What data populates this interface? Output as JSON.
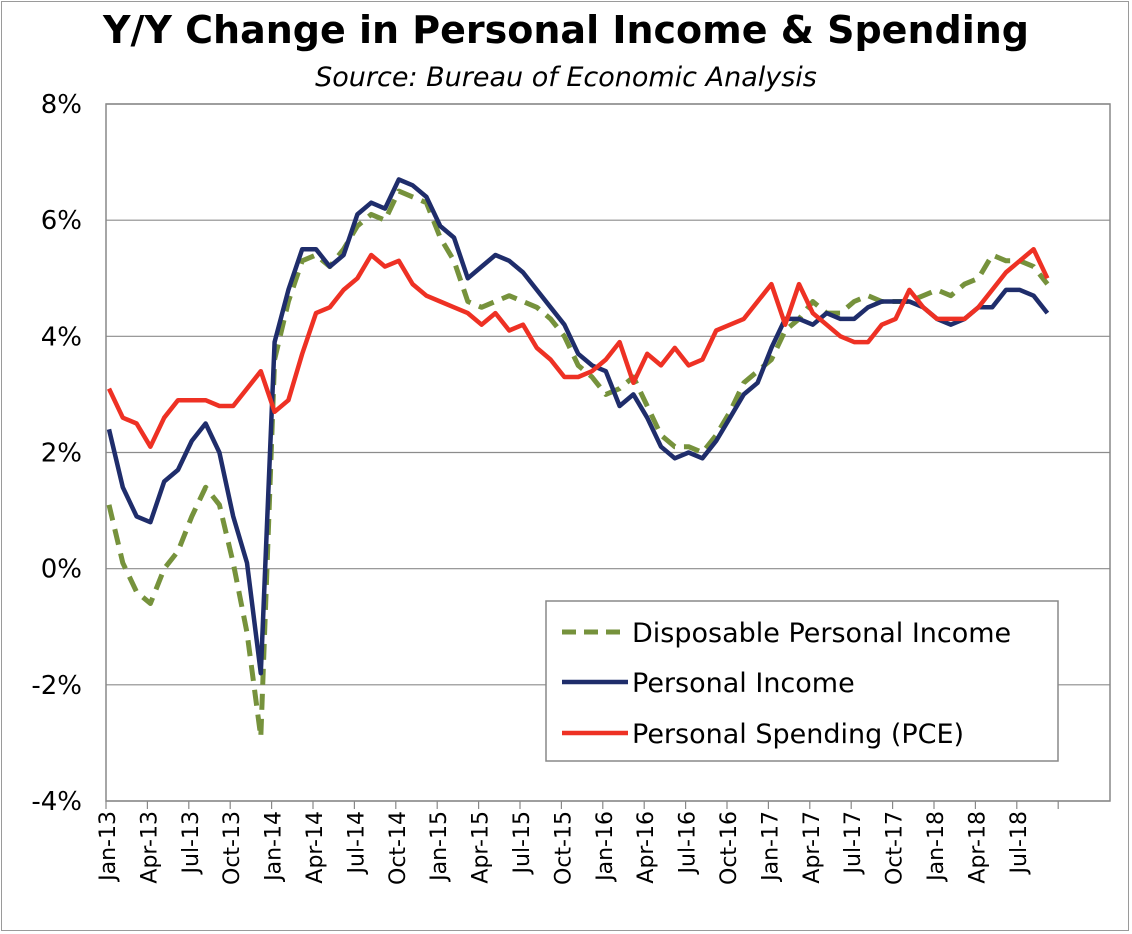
{
  "chart_data": {
    "type": "line",
    "title": "Y/Y Change in Personal Income & Spending",
    "subtitle": "Source: Bureau of Economic Analysis",
    "xlabel": "",
    "ylabel": "",
    "ylim": [
      -4,
      8
    ],
    "y_ticks": [
      "-4%",
      "-2%",
      "0%",
      "2%",
      "4%",
      "6%",
      "8%"
    ],
    "x_tick_labels": [
      "Jan-13",
      "Apr-13",
      "Jul-13",
      "Oct-13",
      "Jan-14",
      "Apr-14",
      "Jul-14",
      "Oct-14",
      "Jan-15",
      "Apr-15",
      "Jul-15",
      "Oct-15",
      "Jan-16",
      "Apr-16",
      "Jul-16",
      "Oct-16",
      "Jan-17",
      "Apr-17",
      "Jul-17",
      "Oct-17",
      "Jan-18",
      "Apr-18",
      "Jul-18"
    ],
    "x_start": "2013-01",
    "x_end": "2018-10",
    "grid": true,
    "legend_position": "bottom-right",
    "series": [
      {
        "name": "Disposable Personal Income",
        "color": "#76923c",
        "style": "dashed",
        "values": [
          1.1,
          0.1,
          -0.4,
          -0.6,
          0.0,
          0.3,
          0.9,
          1.4,
          1.1,
          0.1,
          -1.1,
          -2.9,
          3.6,
          4.6,
          5.3,
          5.4,
          5.2,
          5.5,
          5.9,
          6.1,
          6.0,
          6.5,
          6.4,
          6.3,
          5.7,
          5.3,
          4.6,
          4.5,
          4.6,
          4.7,
          4.6,
          4.5,
          4.3,
          4.0,
          3.5,
          3.3,
          3.0,
          3.1,
          3.3,
          2.8,
          2.3,
          2.1,
          2.1,
          2.0,
          2.3,
          2.7,
          3.2,
          3.4,
          3.6,
          4.1,
          4.3,
          4.6,
          4.4,
          4.4,
          4.6,
          4.7,
          4.6,
          4.6,
          4.6,
          4.7,
          4.8,
          4.7,
          4.9,
          5.0,
          5.4,
          5.3,
          5.3,
          5.2,
          4.9
        ]
      },
      {
        "name": "Personal Income",
        "color": "#1f2d6b",
        "style": "solid",
        "values": [
          2.4,
          1.4,
          0.9,
          0.8,
          1.5,
          1.7,
          2.2,
          2.5,
          2.0,
          0.9,
          0.1,
          -1.8,
          3.9,
          4.8,
          5.5,
          5.5,
          5.2,
          5.4,
          6.1,
          6.3,
          6.2,
          6.7,
          6.6,
          6.4,
          5.9,
          5.7,
          5.0,
          5.2,
          5.4,
          5.3,
          5.1,
          4.8,
          4.5,
          4.2,
          3.7,
          3.5,
          3.4,
          2.8,
          3.0,
          2.6,
          2.1,
          1.9,
          2.0,
          1.9,
          2.2,
          2.6,
          3.0,
          3.2,
          3.8,
          4.3,
          4.3,
          4.2,
          4.4,
          4.3,
          4.3,
          4.5,
          4.6,
          4.6,
          4.6,
          4.5,
          4.3,
          4.2,
          4.3,
          4.5,
          4.5,
          4.8,
          4.8,
          4.7,
          4.4
        ]
      },
      {
        "name": "Personal Spending (PCE)",
        "color": "#ee3124",
        "style": "solid",
        "values": [
          3.1,
          2.6,
          2.5,
          2.1,
          2.6,
          2.9,
          2.9,
          2.9,
          2.8,
          2.8,
          3.1,
          3.4,
          2.7,
          2.9,
          3.7,
          4.4,
          4.5,
          4.8,
          5.0,
          5.4,
          5.2,
          5.3,
          4.9,
          4.7,
          4.6,
          4.5,
          4.4,
          4.2,
          4.4,
          4.1,
          4.2,
          3.8,
          3.6,
          3.3,
          3.3,
          3.4,
          3.6,
          3.9,
          3.2,
          3.7,
          3.5,
          3.8,
          3.5,
          3.6,
          4.1,
          4.2,
          4.3,
          4.6,
          4.9,
          4.2,
          4.9,
          4.4,
          4.2,
          4.0,
          3.9,
          3.9,
          4.2,
          4.3,
          4.8,
          4.5,
          4.3,
          4.3,
          4.3,
          4.5,
          4.8,
          5.1,
          5.3,
          5.5,
          5.0
        ]
      }
    ]
  }
}
